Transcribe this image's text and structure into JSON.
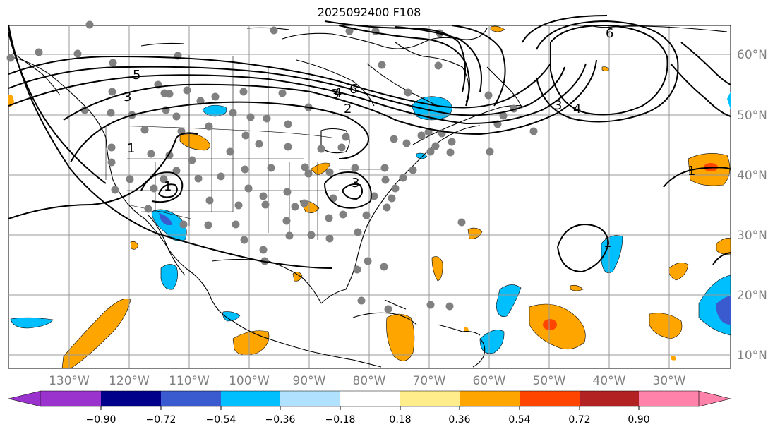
{
  "title": "2025092400 F108",
  "lat_labels": [
    "60°N",
    "50°N",
    "40°N",
    "30°N",
    "20°N",
    "10°N"
  ],
  "lon_labels": [
    "130°W",
    "120°W",
    "110°W",
    "100°W",
    "90°W",
    "80°W",
    "70°W",
    "60°W",
    "50°W",
    "40°W",
    "30°W"
  ],
  "colorbar": {
    "ticks": [
      "−0.90",
      "−0.72",
      "−0.54",
      "−0.36",
      "−0.18",
      "0.18",
      "0.36",
      "0.54",
      "0.72",
      "0.90"
    ],
    "colors": [
      "#9a32cd",
      "#00008b",
      "#3a5bd0",
      "#00bfff",
      "#b0e2ff",
      "#ffffff",
      "#ffec8b",
      "#ffa500",
      "#ff4500",
      "#b22222",
      "#ff82ab"
    ]
  },
  "contour_labels": [
    "5",
    "3",
    "1",
    "3",
    "3",
    "4",
    "6",
    "2",
    "3",
    "4",
    "6",
    "1",
    "1",
    "1"
  ],
  "colors": {
    "station_dot": "#808080",
    "grid": "#999999",
    "positive": "#ffa500",
    "negative": "#00bfff"
  }
}
